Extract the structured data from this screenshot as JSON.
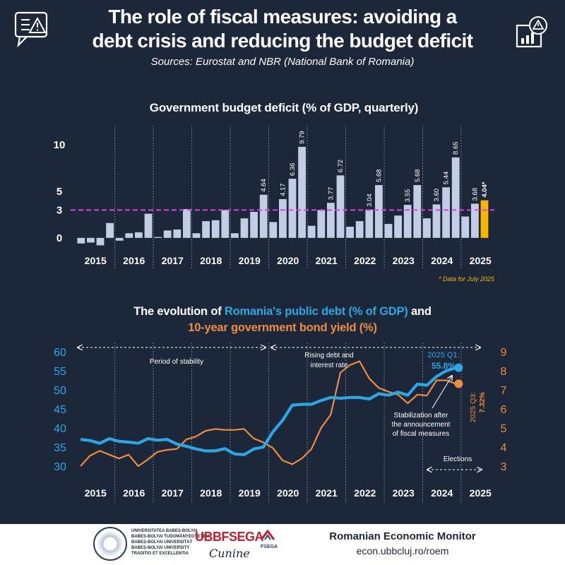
{
  "header": {
    "title_line1": "The role of fiscal measures: avoiding a",
    "title_line2": "debt crisis and reducing the budget deficit",
    "sources": "Sources: Eurostat and NBR (National Bank of Romania)"
  },
  "chart_data": [
    {
      "type": "bar",
      "title": "Government budget deficit (% of GDP, quarterly)",
      "yticks": [
        0,
        3,
        5,
        10
      ],
      "ylim": [
        -1,
        11
      ],
      "reference_line": {
        "value": 3,
        "label": "3",
        "color": "#e040e0"
      },
      "year_labels": [
        "2015",
        "2016",
        "2017",
        "2018",
        "2019",
        "2020",
        "2021",
        "2022",
        "2023",
        "2024",
        "2025"
      ],
      "values": [
        -0.6,
        -0.5,
        -0.8,
        1.6,
        -0.3,
        0.5,
        0.6,
        2.6,
        0.1,
        0.8,
        0.9,
        3.1,
        0.5,
        1.8,
        1.9,
        3.0,
        0.5,
        2.1,
        2.8,
        4.64,
        1.7,
        4.17,
        6.36,
        9.79,
        1.3,
        3.0,
        3.77,
        6.72,
        1.2,
        1.8,
        3.04,
        5.68,
        1.5,
        2.4,
        3.55,
        5.68,
        2.1,
        3.6,
        5.44,
        8.65,
        2.3,
        3.68,
        4.04
      ],
      "value_labels": {
        "19": "4.64",
        "21": "4.17",
        "22": "6.36",
        "23": "9.79",
        "26": "3.77",
        "27": "6.72",
        "30": "3.04",
        "31": "5.68",
        "34": "3.55",
        "35": "5.68",
        "37": "3.60",
        "38": "5.44",
        "39": "8.65",
        "41": "3.68",
        "42": "4.04*"
      },
      "highlight_index": 42,
      "bar_color": "#c2cde4",
      "highlight_color": "#f7b500",
      "footnote": "* Data for July 2025"
    },
    {
      "type": "line",
      "title_part1": "The evolution of ",
      "title_part2": "Romania's public debt (% of GDP)",
      "title_part3": " and",
      "title_line2": "10-year government bond yield (%)",
      "left_axis": {
        "ticks": [
          30,
          35,
          40,
          45,
          50,
          55,
          60
        ],
        "ylim": [
          28,
          62
        ],
        "color": "#2ca7e6"
      },
      "right_axis": {
        "ticks": [
          3,
          4,
          5,
          6,
          7,
          8,
          9
        ],
        "ylim": [
          2.75,
          9.05
        ],
        "color": "#f08c3c"
      },
      "year_labels": [
        "2015",
        "2016",
        "2017",
        "2018",
        "2019",
        "2020",
        "2021",
        "2022",
        "2023",
        "2024",
        "2025"
      ],
      "series": [
        {
          "key": "debt",
          "color": "#2ca7e6",
          "values": [
            37.0,
            36.7,
            36.0,
            37.2,
            36.5,
            36.3,
            36.0,
            37.2,
            36.8,
            37.0,
            35.8,
            35.2,
            34.5,
            34.0,
            34.0,
            34.6,
            33.2,
            33.0,
            34.5,
            35.0,
            39.0,
            42.0,
            46.0,
            46.2,
            46.2,
            47.2,
            48.0,
            47.8,
            48.0,
            48.0,
            47.6,
            49.0,
            48.6,
            49.4,
            48.6,
            51.5,
            51.2,
            53.5,
            55.0,
            55.8
          ]
        },
        {
          "key": "yield",
          "color": "#f08c3c",
          "values": [
            3.0,
            3.55,
            3.8,
            3.6,
            3.4,
            3.6,
            3.0,
            3.35,
            3.75,
            3.85,
            3.9,
            4.4,
            4.55,
            4.85,
            4.95,
            4.9,
            4.9,
            4.95,
            4.45,
            4.25,
            3.95,
            3.3,
            3.1,
            3.4,
            3.9,
            5.0,
            5.7,
            7.9,
            8.3,
            8.5,
            7.6,
            7.1,
            6.9,
            6.75,
            6.3,
            6.75,
            6.7,
            7.5,
            7.5,
            7.32
          ]
        }
      ],
      "annotations": {
        "period_stability": "Period of stability",
        "rising_line1": "Rising debt and",
        "rising_line2": "interest rate",
        "debt_last_line1": "2025 Q1:",
        "debt_last_line2": "55.8%",
        "yield_last_line1": "2025 Q3:",
        "yield_last_line2": "7.32%",
        "stab_line1": "Stabilization after",
        "stab_line2": "the announcement",
        "stab_line3": "of fiscal measures",
        "elections": "Elections"
      }
    }
  ],
  "footer": {
    "monitor_title": "Romanian Economic Monitor",
    "url": "econ.ubbcluj.ro/roem",
    "uni_lines": [
      "UNIVERSITATEA BABEȘ-BOLYAI",
      "BABEȘ-BOLYAI TUDOMÁNYEGYETEM",
      "BABEȘ-BOLYAI UNIVERSITÄT",
      "BABEȘ-BOLYAI UNIVERSITY",
      "TRADITIO ET EXCELLENTIA"
    ],
    "fsega": "UBBFSEGA",
    "fsega_small": "FSEGA",
    "signature": "Cunine"
  },
  "icons": {
    "left": "document-warning-icon",
    "right": "chart-warning-icon"
  }
}
